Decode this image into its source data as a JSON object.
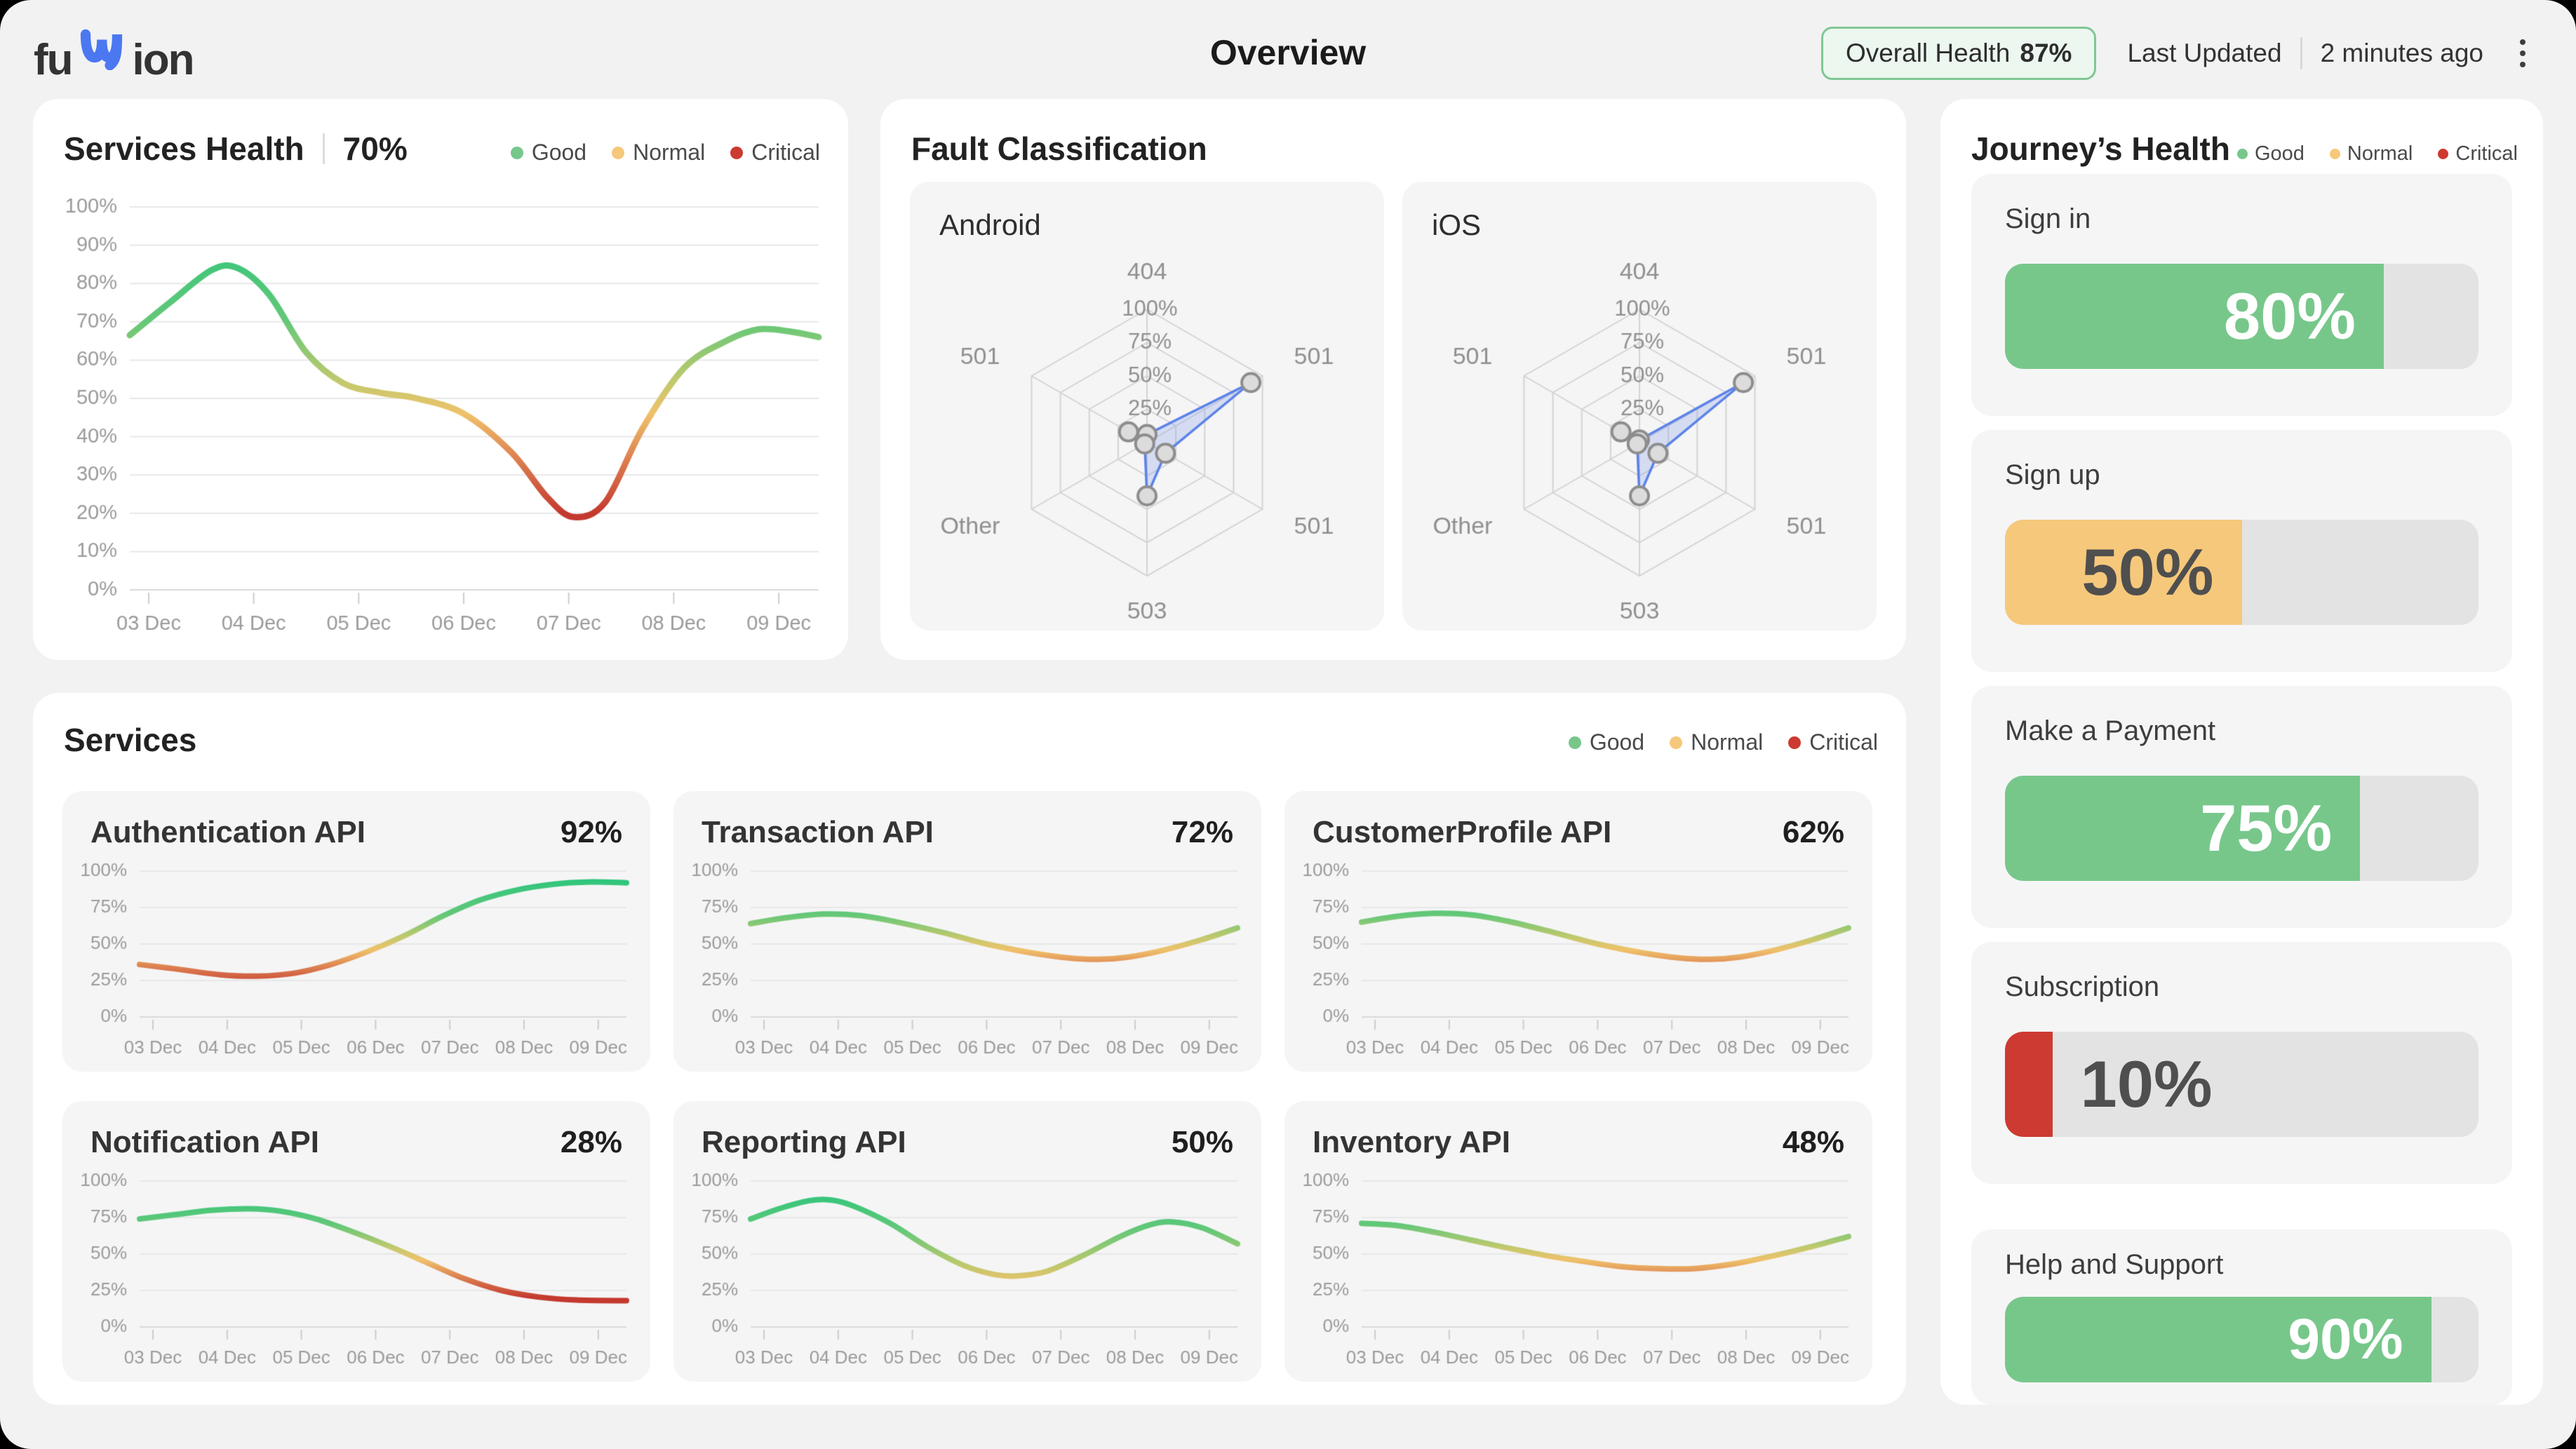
{
  "header": {
    "logo_prefix": "fu",
    "logo_suffix": "ion",
    "title": "Overview",
    "overall_health_label": "Overall Health",
    "overall_health_value": "87%",
    "last_updated_label": "Last Updated",
    "last_updated_value": "2 minutes ago"
  },
  "legend": {
    "items": [
      {
        "label": "Good",
        "status": "good"
      },
      {
        "label": "Normal",
        "status": "normal"
      },
      {
        "label": "Critical",
        "status": "critical"
      }
    ]
  },
  "colors": {
    "good": "#77c78b",
    "normal": "#f6c87b",
    "critical": "#cd3a31",
    "radar_stroke": "#5b82e8",
    "radar_fill": "rgba(122,149,232,0.26)",
    "line_gradient_default": [
      [
        0,
        "#21c57d"
      ],
      [
        0.3,
        "#64c878"
      ],
      [
        0.46,
        "#c5c96d"
      ],
      [
        0.54,
        "#f0c26b"
      ],
      [
        0.66,
        "#dc7f50"
      ],
      [
        0.8,
        "#c4392f"
      ],
      [
        1,
        "#c4392f"
      ]
    ],
    "line_gradient_warm": [
      [
        0,
        "#21c57d"
      ],
      [
        0.33,
        "#63c878"
      ],
      [
        0.55,
        "#b5c96e"
      ],
      [
        0.7,
        "#eec26a"
      ],
      [
        1,
        "#e8b65e"
      ]
    ]
  },
  "services_health": {
    "title": "Services Health",
    "value": "70%",
    "chart": {
      "type": "line",
      "x_labels": [
        "03 Dec",
        "04 Dec",
        "05 Dec",
        "06 Dec",
        "07 Dec",
        "08 Dec",
        "09 Dec"
      ],
      "x_domain": [
        2.82,
        9.38
      ],
      "y_ticks": [
        0,
        10,
        20,
        30,
        40,
        50,
        60,
        70,
        80,
        90,
        100
      ],
      "ylim": [
        0,
        100
      ],
      "points": [
        [
          2.82,
          66.5
        ],
        [
          3.2,
          75
        ],
        [
          3.6,
          83.5
        ],
        [
          3.85,
          84
        ],
        [
          4.15,
          77
        ],
        [
          4.5,
          62
        ],
        [
          4.85,
          54
        ],
        [
          5.2,
          51.5
        ],
        [
          5.55,
          50
        ],
        [
          6,
          46
        ],
        [
          6.45,
          36
        ],
        [
          6.8,
          24
        ],
        [
          7.05,
          19
        ],
        [
          7.35,
          23
        ],
        [
          7.7,
          42
        ],
        [
          8.1,
          58
        ],
        [
          8.5,
          65
        ],
        [
          8.8,
          68
        ],
        [
          9.1,
          67.5
        ],
        [
          9.38,
          66
        ]
      ]
    }
  },
  "fault_classification": {
    "title": "Fault Classification",
    "charts": [
      {
        "platform": "Android",
        "type": "radar",
        "axes": [
          "404",
          "501",
          "501",
          "503",
          "Other",
          "501"
        ],
        "ring_labels": [
          "25%",
          "50%",
          "75%",
          "100%"
        ],
        "rings": [
          25,
          50,
          75,
          100
        ],
        "values": [
          6,
          90,
          16,
          40,
          2,
          16
        ]
      },
      {
        "platform": "iOS",
        "type": "radar",
        "axes": [
          "404",
          "501",
          "501",
          "503",
          "Other",
          "501"
        ],
        "ring_labels": [
          "25%",
          "50%",
          "75%",
          "100%"
        ],
        "rings": [
          25,
          50,
          75,
          100
        ],
        "values": [
          2,
          90,
          16,
          40,
          2,
          16
        ]
      }
    ]
  },
  "services": {
    "title": "Services",
    "cards": [
      {
        "name": "Authentication API",
        "value": "92%",
        "gradient": "default",
        "chart": {
          "type": "line",
          "x_labels": [
            "03 Dec",
            "04 Dec",
            "05 Dec",
            "06 Dec",
            "07 Dec",
            "08 Dec",
            "09 Dec"
          ],
          "x_domain": [
            2.82,
            9.38
          ],
          "y_ticks": [
            0,
            25,
            50,
            75,
            100
          ],
          "ylim": [
            0,
            100
          ],
          "points": [
            [
              2.82,
              36
            ],
            [
              3.3,
              33
            ],
            [
              3.9,
              29
            ],
            [
              4.4,
              28
            ],
            [
              4.9,
              30
            ],
            [
              5.4,
              36
            ],
            [
              5.9,
              45
            ],
            [
              6.4,
              56
            ],
            [
              6.9,
              69
            ],
            [
              7.4,
              80
            ],
            [
              7.9,
              87
            ],
            [
              8.4,
              91
            ],
            [
              8.9,
              92.5
            ],
            [
              9.38,
              92
            ]
          ]
        }
      },
      {
        "name": "Transaction API",
        "value": "72%",
        "gradient": "default",
        "chart": {
          "type": "line",
          "x_labels": [
            "03 Dec",
            "04 Dec",
            "05 Dec",
            "06 Dec",
            "07 Dec",
            "08 Dec",
            "09 Dec"
          ],
          "x_domain": [
            2.82,
            9.38
          ],
          "y_ticks": [
            0,
            25,
            50,
            75,
            100
          ],
          "ylim": [
            0,
            100
          ],
          "points": [
            [
              2.82,
              64
            ],
            [
              3.3,
              68
            ],
            [
              3.8,
              70.5
            ],
            [
              4.3,
              69.5
            ],
            [
              4.8,
              65
            ],
            [
              5.4,
              58
            ],
            [
              6,
              50
            ],
            [
              6.6,
              44
            ],
            [
              7.1,
              40.5
            ],
            [
              7.5,
              39.5
            ],
            [
              7.9,
              41
            ],
            [
              8.4,
              46
            ],
            [
              8.9,
              53
            ],
            [
              9.38,
              61
            ]
          ]
        }
      },
      {
        "name": "CustomerProfile API",
        "value": "62%",
        "gradient": "default",
        "chart": {
          "type": "line",
          "x_labels": [
            "03 Dec",
            "04 Dec",
            "05 Dec",
            "06 Dec",
            "07 Dec",
            "08 Dec",
            "09 Dec"
          ],
          "x_domain": [
            2.82,
            9.38
          ],
          "y_ticks": [
            0,
            25,
            50,
            75,
            100
          ],
          "ylim": [
            0,
            100
          ],
          "points": [
            [
              2.82,
              65
            ],
            [
              3.3,
              69
            ],
            [
              3.8,
              71
            ],
            [
              4.3,
              70
            ],
            [
              4.8,
              65.5
            ],
            [
              5.4,
              58
            ],
            [
              6,
              50
            ],
            [
              6.6,
              44
            ],
            [
              7.1,
              40.5
            ],
            [
              7.5,
              39.5
            ],
            [
              7.9,
              41
            ],
            [
              8.4,
              46
            ],
            [
              8.9,
              53
            ],
            [
              9.38,
              61
            ]
          ]
        }
      },
      {
        "name": "Notification API",
        "value": "28%",
        "gradient": "default",
        "chart": {
          "type": "line",
          "x_labels": [
            "03 Dec",
            "04 Dec",
            "05 Dec",
            "06 Dec",
            "07 Dec",
            "08 Dec",
            "09 Dec"
          ],
          "x_domain": [
            2.82,
            9.38
          ],
          "y_ticks": [
            0,
            25,
            50,
            75,
            100
          ],
          "ylim": [
            0,
            100
          ],
          "points": [
            [
              2.82,
              74
            ],
            [
              3.3,
              77
            ],
            [
              3.8,
              80
            ],
            [
              4.3,
              81
            ],
            [
              4.7,
              79.5
            ],
            [
              5.2,
              74
            ],
            [
              5.7,
              65
            ],
            [
              6.2,
              55
            ],
            [
              6.7,
              44
            ],
            [
              7.2,
              33
            ],
            [
              7.7,
              25
            ],
            [
              8.2,
              20.5
            ],
            [
              8.7,
              18.5
            ],
            [
              9.38,
              18
            ]
          ]
        }
      },
      {
        "name": "Reporting API",
        "value": "50%",
        "gradient": "warm",
        "chart": {
          "type": "line",
          "x_labels": [
            "03 Dec",
            "04 Dec",
            "05 Dec",
            "06 Dec",
            "07 Dec",
            "08 Dec",
            "09 Dec"
          ],
          "x_domain": [
            2.82,
            9.38
          ],
          "y_ticks": [
            0,
            25,
            50,
            75,
            100
          ],
          "ylim": [
            0,
            100
          ],
          "points": [
            [
              2.82,
              74
            ],
            [
              3.2,
              81
            ],
            [
              3.6,
              86.5
            ],
            [
              3.9,
              87
            ],
            [
              4.2,
              83
            ],
            [
              4.7,
              71
            ],
            [
              5.2,
              55
            ],
            [
              5.7,
              42
            ],
            [
              6.1,
              36
            ],
            [
              6.4,
              35
            ],
            [
              6.8,
              38
            ],
            [
              7.3,
              49
            ],
            [
              7.8,
              62
            ],
            [
              8.2,
              70
            ],
            [
              8.5,
              72
            ],
            [
              8.9,
              68
            ],
            [
              9.38,
              57
            ]
          ]
        }
      },
      {
        "name": "Inventory API",
        "value": "48%",
        "gradient": "default",
        "chart": {
          "type": "line",
          "x_labels": [
            "03 Dec",
            "04 Dec",
            "05 Dec",
            "06 Dec",
            "07 Dec",
            "08 Dec",
            "09 Dec"
          ],
          "x_domain": [
            2.82,
            9.38
          ],
          "y_ticks": [
            0,
            25,
            50,
            75,
            100
          ],
          "ylim": [
            0,
            100
          ],
          "points": [
            [
              2.82,
              71
            ],
            [
              3.3,
              69.5
            ],
            [
              3.8,
              65
            ],
            [
              4.3,
              59.5
            ],
            [
              4.8,
              54
            ],
            [
              5.3,
              49
            ],
            [
              5.8,
              45
            ],
            [
              6.3,
              41.5
            ],
            [
              6.8,
              40
            ],
            [
              7.3,
              40
            ],
            [
              7.8,
              43
            ],
            [
              8.3,
              48
            ],
            [
              8.8,
              54
            ],
            [
              9.38,
              62
            ]
          ]
        }
      }
    ]
  },
  "journeys_health": {
    "title": "Journey’s Health",
    "items": [
      {
        "label": "Sign in",
        "value": "80%",
        "pct": 80,
        "status": "good",
        "label_color": "#ffffff",
        "label_placement": "inside"
      },
      {
        "label": "Sign up",
        "value": "50%",
        "pct": 50,
        "status": "normal",
        "label_color": "#4f4f4f",
        "label_placement": "inside"
      },
      {
        "label": "Make a Payment",
        "value": "75%",
        "pct": 75,
        "status": "good",
        "label_color": "#ffffff",
        "label_placement": "inside"
      },
      {
        "label": "Subscription",
        "value": "10%",
        "pct": 10,
        "status": "critical",
        "label_color": "#4f4f4f",
        "label_placement": "outside"
      },
      {
        "label": "Help and Support",
        "value": "90%",
        "pct": 90,
        "status": "good",
        "label_color": "#ffffff",
        "label_placement": "inside"
      }
    ]
  }
}
